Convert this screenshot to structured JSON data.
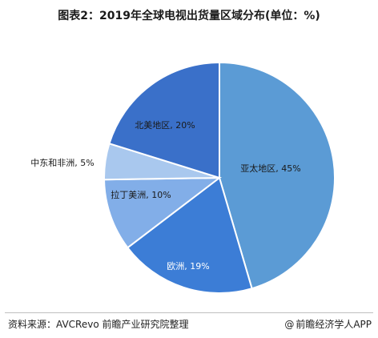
{
  "title": "图表2：2019年全球电视出货量区域分布(单位：%)",
  "source": "资料来源：AVCRevo 前瞻产业研究院整理",
  "brand": "前瞻经济学人APP",
  "brand_icon": "at-sign-icon",
  "chart_data": {
    "type": "pie",
    "start_angle_deg": 0,
    "direction": "clockwise",
    "slices": [
      {
        "label": "亚太地区, 45%",
        "name": "亚太地区",
        "value": 45,
        "color": "#5b9bd5",
        "text_color": "#1a1a1a"
      },
      {
        "label": "欧洲, 19%",
        "name": "欧洲",
        "value": 19,
        "color": "#3c7dd6",
        "text_color": "#ffffff"
      },
      {
        "label": "拉丁美洲, 10%",
        "name": "拉丁美洲",
        "value": 10,
        "color": "#82aee8",
        "text_color": "#1a1a1a"
      },
      {
        "label": "中东和非洲, 5%",
        "name": "中东和非洲",
        "value": 5,
        "color": "#a9c8ee",
        "text_color": "#1a1a1a"
      },
      {
        "label": "北美地区, 20%",
        "name": "北美地区",
        "value": 20,
        "color": "#3a70c9",
        "text_color": "#1a1a1a"
      }
    ]
  }
}
